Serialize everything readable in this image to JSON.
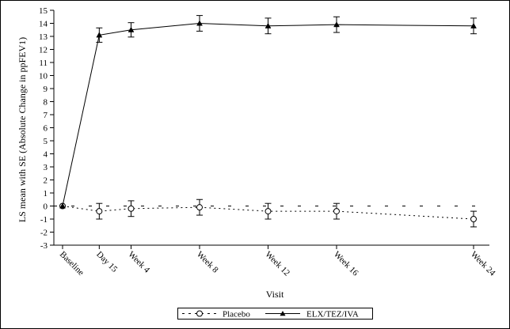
{
  "chart_data": {
    "type": "line",
    "title": "",
    "xlabel": "Visit",
    "ylabel": "LS mean with SE (Absolute Change in ppFEV1)",
    "categories": [
      "Baseline",
      "Day 15",
      "Week 4",
      "Week 8",
      "Week 12",
      "Week 16",
      "Week 24"
    ],
    "x_days": [
      0,
      15,
      28,
      56,
      84,
      112,
      168
    ],
    "ylim": [
      -3,
      15
    ],
    "yticks": [
      -3,
      -2,
      -1,
      0,
      1,
      2,
      3,
      4,
      5,
      6,
      7,
      8,
      9,
      10,
      11,
      12,
      13,
      14,
      15
    ],
    "grid": false,
    "legend_position": "bottom",
    "reference_line": 0,
    "series": [
      {
        "name": "Placebo",
        "marker": "open-circle",
        "line_style": "dashed",
        "values": [
          0,
          -0.4,
          -0.2,
          -0.1,
          -0.4,
          -0.4,
          -1.0
        ],
        "se": [
          0,
          0.6,
          0.6,
          0.6,
          0.6,
          0.6,
          0.6
        ]
      },
      {
        "name": "ELX/TEZ/IVA",
        "marker": "filled-triangle",
        "line_style": "solid",
        "values": [
          0,
          13.1,
          13.5,
          14.0,
          13.8,
          13.9,
          13.8
        ],
        "se": [
          0,
          0.55,
          0.55,
          0.6,
          0.6,
          0.6,
          0.6
        ]
      }
    ]
  }
}
